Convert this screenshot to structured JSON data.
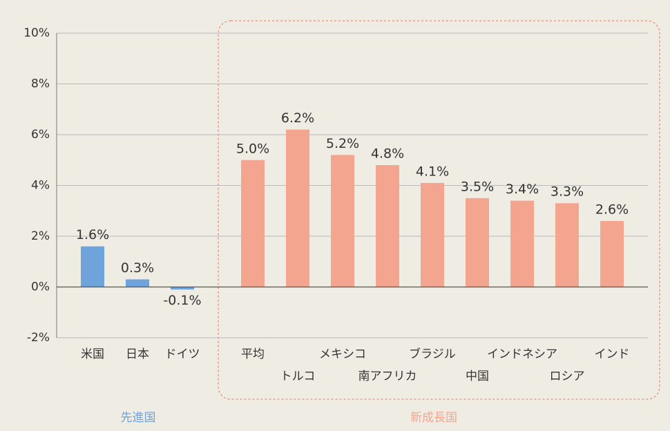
{
  "chart_data": {
    "type": "bar",
    "ylim": [
      -2,
      10
    ],
    "yticks": [
      {
        "value": -2,
        "label": "-2%"
      },
      {
        "value": 0,
        "label": "0%"
      },
      {
        "value": 2,
        "label": "2%"
      },
      {
        "value": 4,
        "label": "4%"
      },
      {
        "value": 6,
        "label": "6%"
      },
      {
        "value": 8,
        "label": "8%"
      },
      {
        "value": 10,
        "label": "10%"
      }
    ],
    "grid": true,
    "groups": [
      {
        "name": "先進国",
        "color": "#6fa3db",
        "categories": [
          "米国",
          "日本",
          "ドイツ"
        ],
        "values": [
          1.6,
          0.3,
          -0.1
        ],
        "value_labels": [
          "1.6%",
          "0.3%",
          "-0.1%"
        ]
      },
      {
        "name": "新成長国",
        "color": "#f4a590",
        "categories": [
          "平均",
          "トルコ",
          "メキシコ",
          "南アフリカ",
          "ブラジル",
          "中国",
          "インドネシア",
          "ロシア",
          "インド"
        ],
        "values": [
          5.0,
          6.2,
          5.2,
          4.8,
          4.1,
          3.5,
          3.4,
          3.3,
          2.6
        ],
        "value_labels": [
          "5.0%",
          "6.2%",
          "5.2%",
          "4.8%",
          "4.1%",
          "3.5%",
          "3.4%",
          "3.3%",
          "2.6%"
        ]
      }
    ]
  }
}
